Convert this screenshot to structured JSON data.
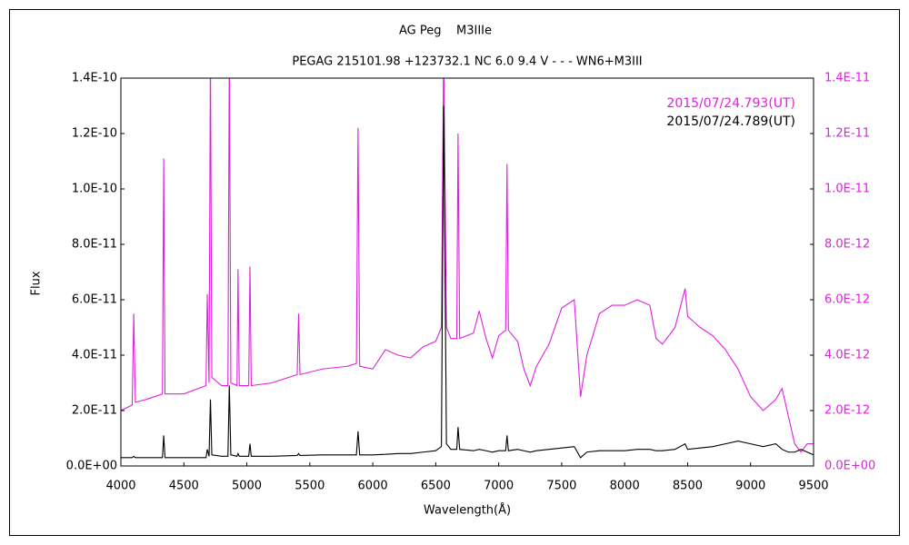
{
  "chart_data": {
    "type": "line",
    "title": "AG Peg    M3IIIe",
    "subtitle": "PEGAG 215101.98 +123732.1 NC 6.0 9.4 V - - - WN6+M3III",
    "x_label": "Wavelength(Å)",
    "y_label": "Flux",
    "legend": "upper right",
    "xlim": [
      4000,
      9500
    ],
    "xticks": [
      4000,
      4500,
      5000,
      5500,
      6000,
      6500,
      7000,
      7500,
      8000,
      8500,
      9000,
      9500
    ],
    "ylim": [
      0,
      1.4e-10
    ],
    "yticks": [
      {
        "value": 0,
        "label": "0.0E+00"
      },
      {
        "value": 2e-11,
        "label": "2.0E-11"
      },
      {
        "value": 4e-11,
        "label": "4.0E-11"
      },
      {
        "value": 6e-11,
        "label": "6.0E-11"
      },
      {
        "value": 8e-11,
        "label": "8.0E-11"
      },
      {
        "value": 1e-10,
        "label": "1.0E-10"
      },
      {
        "value": 1.2e-10,
        "label": "1.2E-10"
      },
      {
        "value": 1.4e-10,
        "label": "1.4E-10"
      }
    ],
    "y2lim": [
      0,
      1.4e-11
    ],
    "y2ticks": [
      {
        "value": 0,
        "label": "0.0E+00"
      },
      {
        "value": 2e-12,
        "label": "2.0E-12"
      },
      {
        "value": 4e-12,
        "label": "4.0E-12"
      },
      {
        "value": 6e-12,
        "label": "6.0E-12"
      },
      {
        "value": 8e-12,
        "label": "8.0E-12"
      },
      {
        "value": 1e-11,
        "label": "1.0E-11"
      },
      {
        "value": 1.2e-11,
        "label": "1.2E-11"
      },
      {
        "value": 1.4e-11,
        "label": "1.4E-11"
      }
    ],
    "y2_color": "#e020e0",
    "x": [
      4000,
      4090,
      4102,
      4115,
      4200,
      4330,
      4340,
      4350,
      4500,
      4676,
      4686,
      4700,
      4711,
      4722,
      4800,
      4850,
      4861,
      4873,
      4922,
      4930,
      4940,
      5015,
      5025,
      5035,
      5200,
      5400,
      5411,
      5422,
      5600,
      5800,
      5870,
      5883,
      5896,
      6000,
      6100,
      6200,
      6300,
      6400,
      6500,
      6545,
      6563,
      6585,
      6620,
      6667,
      6677,
      6690,
      6800,
      6845,
      6900,
      6950,
      7000,
      7055,
      7066,
      7077,
      7150,
      7200,
      7250,
      7300,
      7400,
      7500,
      7600,
      7650,
      7700,
      7800,
      7900,
      8000,
      8100,
      8200,
      8250,
      8300,
      8400,
      8480,
      8500,
      8600,
      8700,
      8800,
      8900,
      9000,
      9100,
      9200,
      9250,
      9300,
      9350,
      9400,
      9450,
      9500
    ],
    "series": [
      {
        "name": "2015/07/24.793(UT)",
        "color": "#e020e0",
        "axis": "y2",
        "values": [
          2e-12,
          2.2e-12,
          5.5e-12,
          2.3e-12,
          2.4e-12,
          2.6e-12,
          1.11e-11,
          2.6e-12,
          2.6e-12,
          2.9e-12,
          6.2e-12,
          3e-12,
          1.5e-11,
          3.2e-12,
          2.9e-12,
          2.9e-12,
          1.5e-11,
          3e-12,
          2.9e-12,
          7.1e-12,
          2.9e-12,
          2.9e-12,
          7.2e-12,
          2.9e-12,
          3e-12,
          3.3e-12,
          5.5e-12,
          3.3e-12,
          3.5e-12,
          3.6e-12,
          3.7e-12,
          1.22e-11,
          3.6e-12,
          3.5e-12,
          4.2e-12,
          4e-12,
          3.9e-12,
          4.3e-12,
          4.5e-12,
          5e-12,
          1.5e-11,
          5e-12,
          4.6e-12,
          4.6e-12,
          1.2e-11,
          4.6e-12,
          4.8e-12,
          5.6e-12,
          4.6e-12,
          3.9e-12,
          4.7e-12,
          4.9e-12,
          1.09e-11,
          4.9e-12,
          4.5e-12,
          3.5e-12,
          2.9e-12,
          3.6e-12,
          4.4e-12,
          5.7e-12,
          6e-12,
          2.5e-12,
          4e-12,
          5.5e-12,
          5.8e-12,
          5.8e-12,
          6e-12,
          5.8e-12,
          4.6e-12,
          4.4e-12,
          5e-12,
          6.4e-12,
          5.4e-12,
          5e-12,
          4.7e-12,
          4.2e-12,
          3.5e-12,
          2.5e-12,
          2e-12,
          2.4e-12,
          2.8e-12,
          1.8e-12,
          8e-13,
          5e-13,
          8e-13,
          8e-13
        ]
      },
      {
        "name": "2015/07/24.789(UT)",
        "color": "#000000",
        "axis": "y",
        "values": [
          3e-12,
          3e-12,
          3.5e-12,
          3e-12,
          3e-12,
          3e-12,
          1.1e-11,
          3e-12,
          3e-12,
          3e-12,
          6e-12,
          3.5e-12,
          2.4e-11,
          4e-12,
          3.5e-12,
          3.5e-12,
          2.9e-11,
          4e-12,
          3.5e-12,
          4.5e-12,
          3.5e-12,
          3.5e-12,
          8e-12,
          3.5e-12,
          3.5e-12,
          3.8e-12,
          4.5e-12,
          3.8e-12,
          4e-12,
          4e-12,
          4e-12,
          1.25e-11,
          4e-12,
          4e-12,
          4.2e-12,
          4.5e-12,
          4.5e-12,
          5e-12,
          5.5e-12,
          7e-12,
          1.3e-10,
          8e-12,
          6e-12,
          6e-12,
          1.4e-11,
          6e-12,
          5.5e-12,
          6e-12,
          5.5e-12,
          5e-12,
          5.5e-12,
          5.5e-12,
          1.1e-11,
          5.5e-12,
          6e-12,
          5.5e-12,
          5e-12,
          5.5e-12,
          6e-12,
          6.5e-12,
          7e-12,
          3e-12,
          5e-12,
          5.5e-12,
          5.5e-12,
          5.5e-12,
          6e-12,
          6e-12,
          5.5e-12,
          5.5e-12,
          6e-12,
          8e-12,
          6e-12,
          6.5e-12,
          7e-12,
          8e-12,
          9e-12,
          8e-12,
          7e-12,
          8e-12,
          6e-12,
          5e-12,
          5e-12,
          6e-12,
          5e-12,
          4e-12
        ]
      }
    ]
  }
}
